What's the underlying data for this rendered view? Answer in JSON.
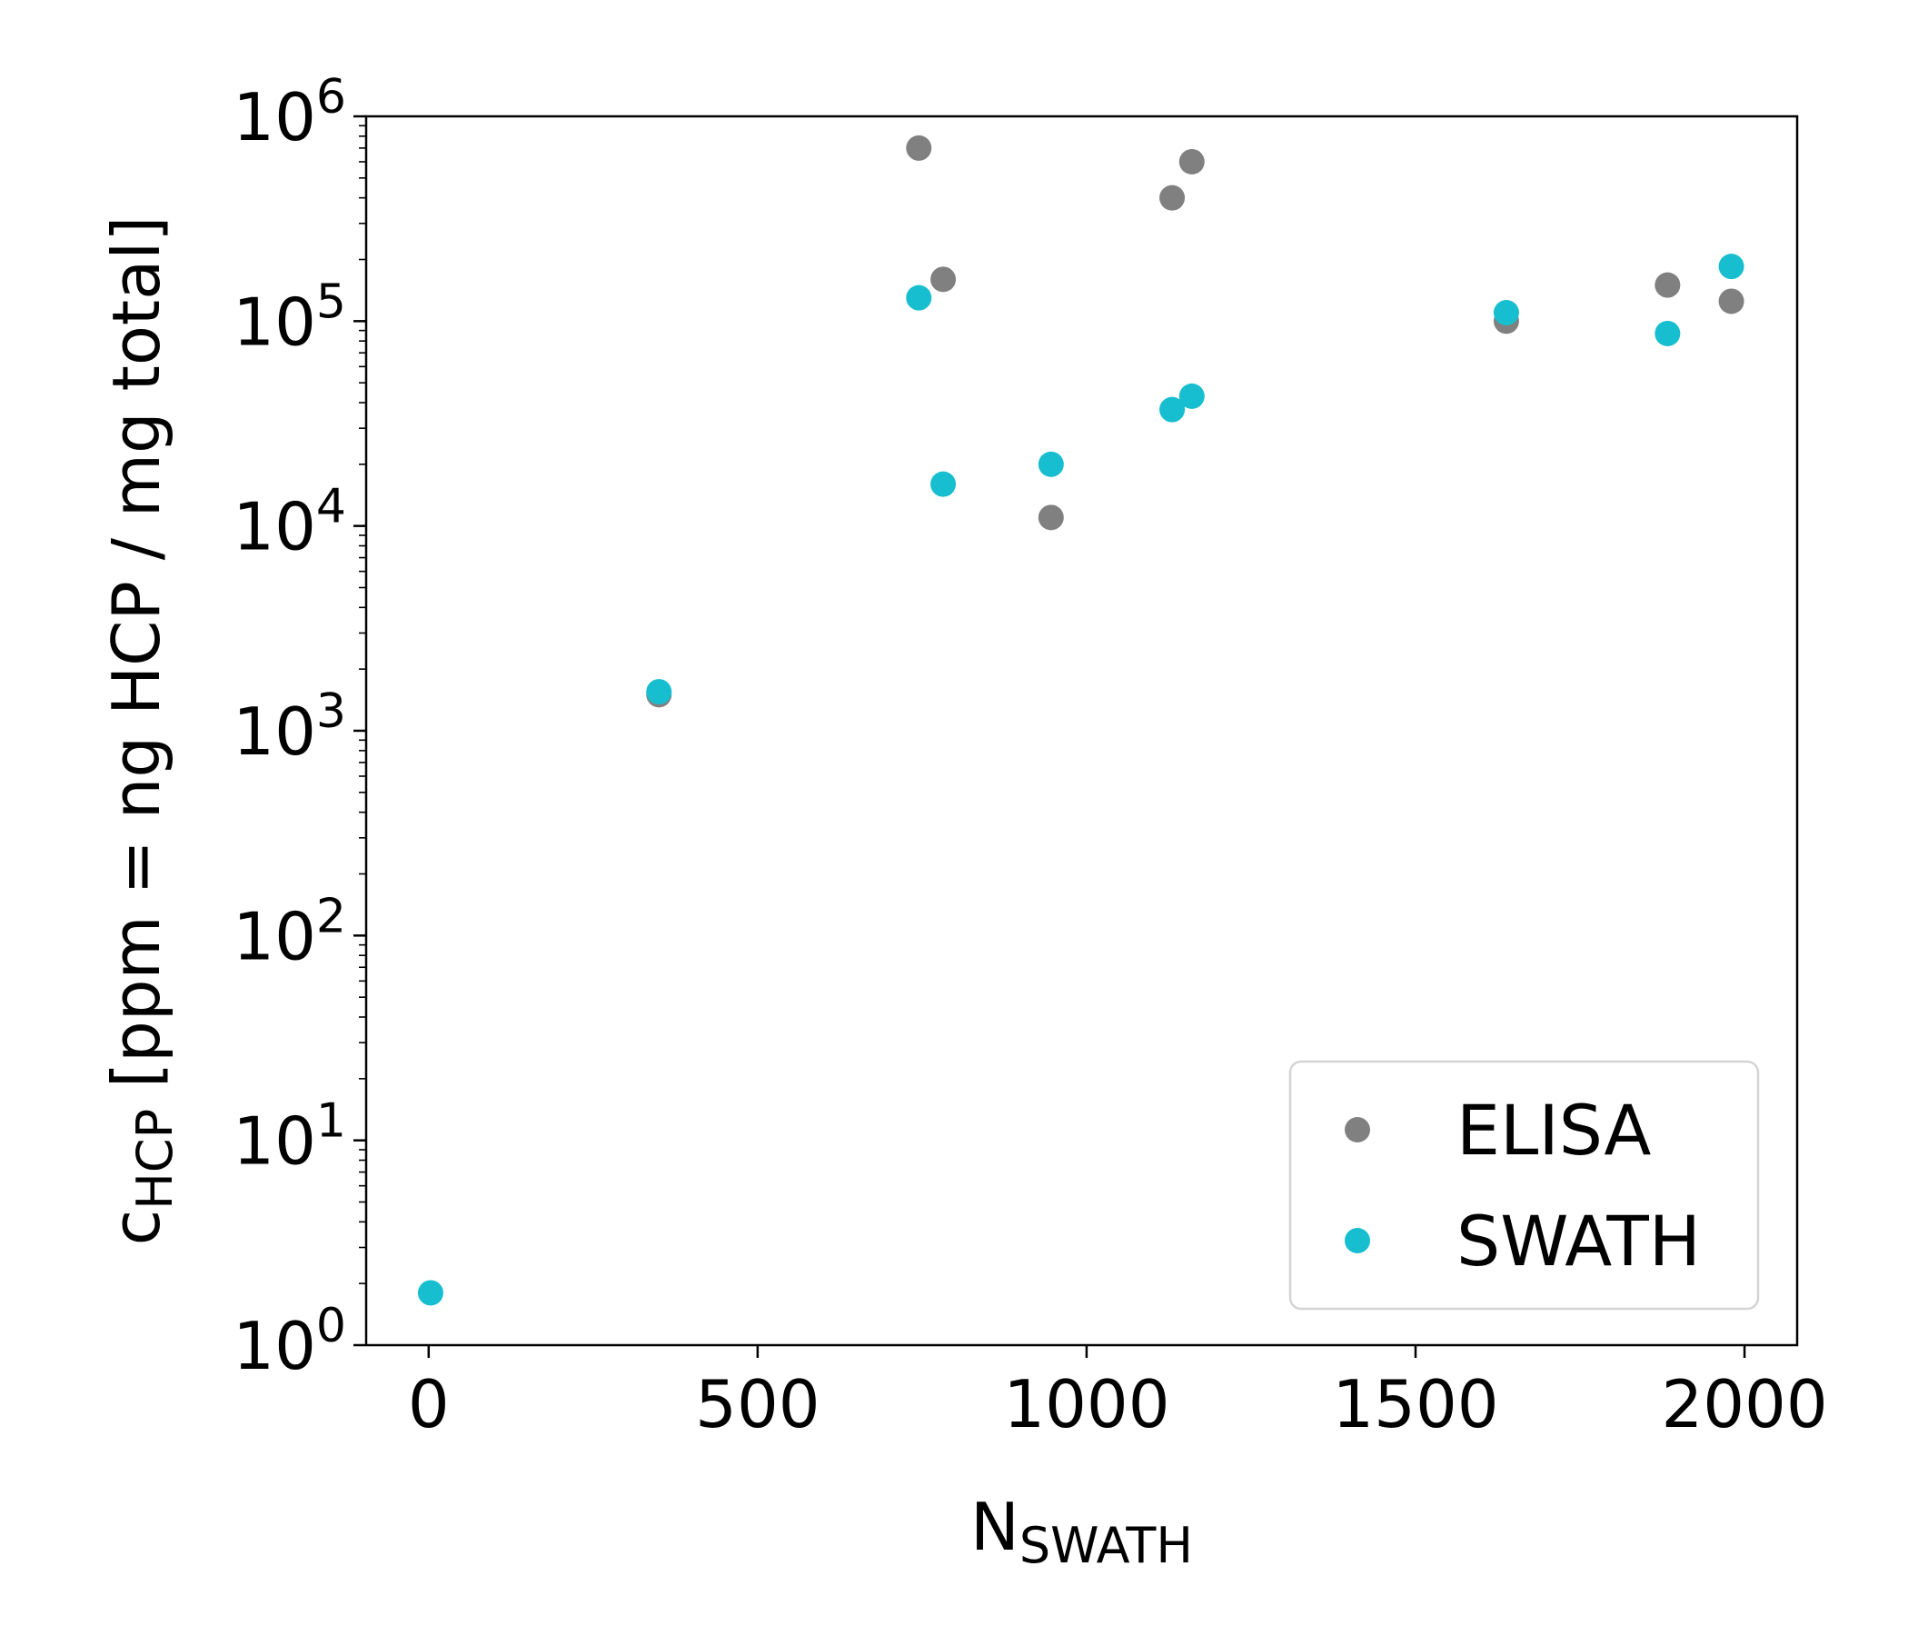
{
  "chart_data": {
    "type": "scatter",
    "title": "",
    "xlabel": {
      "main": "N",
      "sub": "SWATH"
    },
    "ylabel": {
      "main": "c",
      "sub": "HCP",
      "rest": " [ppm = ng HCP / mg total]"
    },
    "xlim": [
      -95,
      2080
    ],
    "ylim": [
      1,
      1000000
    ],
    "yscale": "log",
    "grid": false,
    "legend_position": "lower-right",
    "x_ticks": [
      {
        "value": 0,
        "label": "0"
      },
      {
        "value": 500,
        "label": "500"
      },
      {
        "value": 1000,
        "label": "1000"
      },
      {
        "value": 1500,
        "label": "1500"
      },
      {
        "value": 2000,
        "label": "2000"
      }
    ],
    "y_ticks": [
      {
        "value": 1,
        "base": "10",
        "exp": "0"
      },
      {
        "value": 10,
        "base": "10",
        "exp": "1"
      },
      {
        "value": 100,
        "base": "10",
        "exp": "2"
      },
      {
        "value": 1000,
        "base": "10",
        "exp": "3"
      },
      {
        "value": 10000,
        "base": "10",
        "exp": "4"
      },
      {
        "value": 100000,
        "base": "10",
        "exp": "5"
      },
      {
        "value": 1000000,
        "base": "10",
        "exp": "6"
      }
    ],
    "series": [
      {
        "name": "ELISA",
        "color": "#808080",
        "points": [
          {
            "x": 350,
            "y": 1500
          },
          {
            "x": 745,
            "y": 700000
          },
          {
            "x": 782,
            "y": 160000
          },
          {
            "x": 946,
            "y": 11000
          },
          {
            "x": 1130,
            "y": 400000
          },
          {
            "x": 1160,
            "y": 600000
          },
          {
            "x": 1638,
            "y": 100000
          },
          {
            "x": 1883,
            "y": 150000
          },
          {
            "x": 1980,
            "y": 125000
          }
        ]
      },
      {
        "name": "SWATH",
        "color": "#17becf",
        "points": [
          {
            "x": 3,
            "y": 1.8
          },
          {
            "x": 350,
            "y": 1550
          },
          {
            "x": 745,
            "y": 130000
          },
          {
            "x": 782,
            "y": 16000
          },
          {
            "x": 946,
            "y": 20000
          },
          {
            "x": 1130,
            "y": 37000
          },
          {
            "x": 1160,
            "y": 43000
          },
          {
            "x": 1638,
            "y": 110000
          },
          {
            "x": 1883,
            "y": 87000
          },
          {
            "x": 1980,
            "y": 185000
          }
        ]
      }
    ]
  }
}
